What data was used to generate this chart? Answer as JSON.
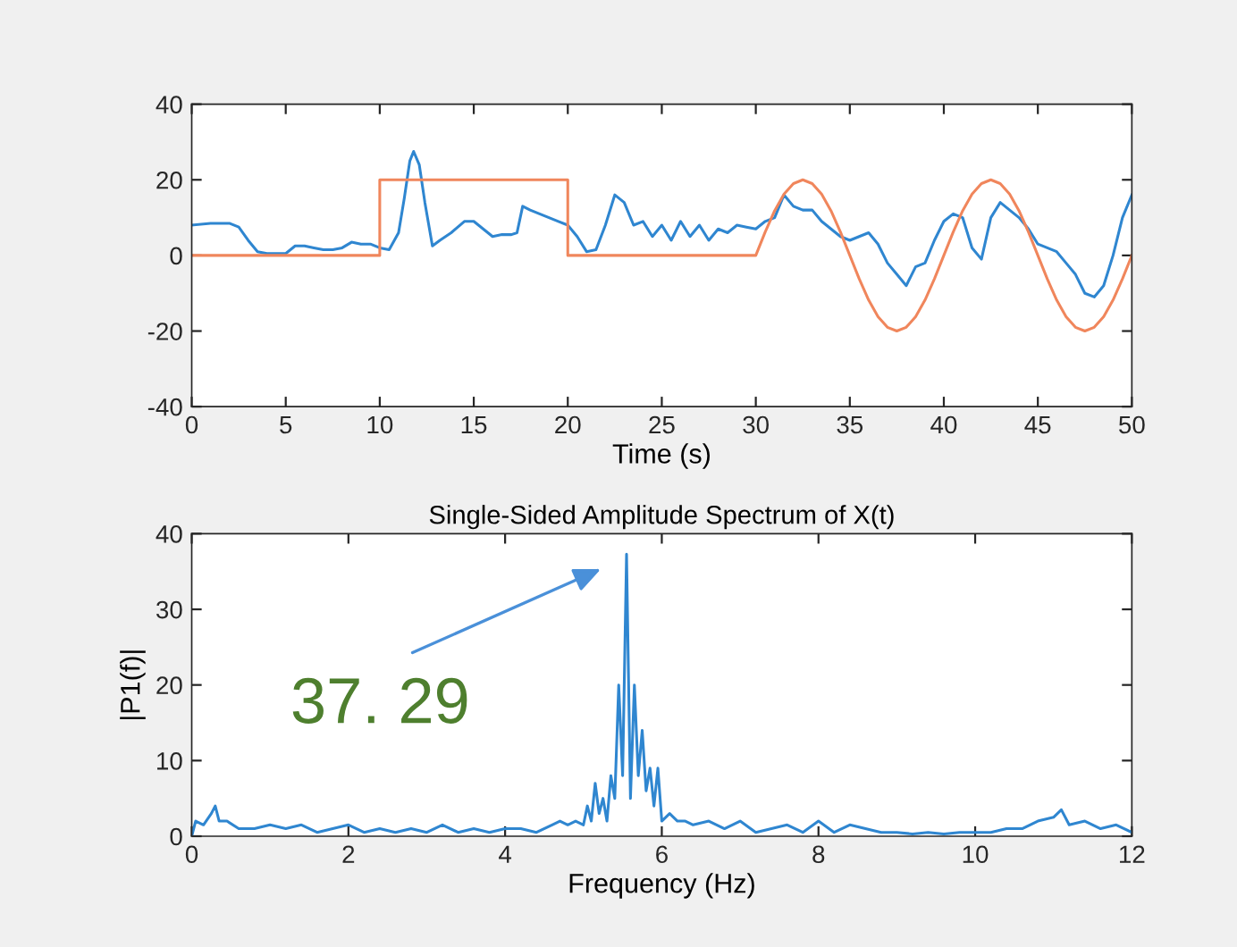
{
  "chart_data": [
    {
      "type": "line",
      "xlabel": "Time (s)",
      "xlim": [
        0,
        50
      ],
      "xticks": [
        0,
        5,
        10,
        15,
        20,
        25,
        30,
        35,
        40,
        45,
        50
      ],
      "ylim": [
        -40,
        40
      ],
      "yticks": [
        -40,
        -20,
        0,
        20,
        40
      ],
      "grid": false,
      "legend": false,
      "series": [
        {
          "color": "#2f86d0",
          "x": [
            0,
            1,
            2,
            2.5,
            3,
            3.5,
            4,
            5,
            5.5,
            6,
            6.5,
            7,
            7.5,
            8,
            8.5,
            9,
            9.5,
            10,
            10.5,
            11,
            11.3,
            11.6,
            11.8,
            12.1,
            12.4,
            12.8,
            13.2,
            13.8,
            14.5,
            15,
            15.5,
            16,
            16.5,
            17,
            17.3,
            17.6,
            18,
            18.5,
            19,
            19.5,
            20,
            20.5,
            21,
            21.5,
            22,
            22.5,
            23,
            23.5,
            24,
            24.5,
            25,
            25.5,
            26,
            26.5,
            27,
            27.5,
            28,
            28.5,
            29,
            29.5,
            30,
            30.5,
            31,
            31.5,
            32,
            32.5,
            33,
            33.5,
            34,
            34.5,
            35,
            35.5,
            36,
            36.5,
            37,
            37.5,
            38,
            38.5,
            39,
            39.5,
            40,
            40.5,
            41,
            41.5,
            42,
            42.5,
            43,
            43.5,
            44,
            44.5,
            45,
            45.5,
            46,
            46.5,
            47,
            47.5,
            48,
            48.5,
            49,
            49.5,
            50
          ],
          "values": [
            8,
            8.5,
            8.5,
            7.5,
            4,
            1,
            0.5,
            0.5,
            2.5,
            2.5,
            2,
            1.5,
            1.5,
            2,
            3.5,
            3,
            3,
            2,
            1.5,
            6,
            15,
            25,
            27.5,
            24,
            14,
            2.5,
            4,
            6,
            9,
            9,
            7,
            5,
            5.5,
            5.5,
            6,
            13,
            12,
            11,
            10,
            9,
            8,
            5,
            1,
            1.5,
            8,
            16,
            14,
            8,
            9,
            5,
            8,
            4,
            9,
            5,
            8,
            4,
            7,
            6,
            8,
            7.5,
            7,
            9,
            10,
            16,
            13,
            12,
            12,
            9,
            7,
            5,
            4,
            5,
            6,
            3,
            -2,
            -5,
            -8,
            -3,
            -2,
            4,
            9,
            11,
            10,
            2,
            -1,
            10,
            14,
            12,
            10,
            7,
            3,
            2,
            1,
            -2,
            -5,
            -10,
            -11,
            -8,
            0,
            10,
            16
          ]
        },
        {
          "color": "#f0865c",
          "x": [
            0,
            10,
            10,
            20,
            20,
            30,
            30.5,
            31,
            31.5,
            32,
            32.5,
            33,
            33.5,
            34,
            34.5,
            35,
            35.5,
            36,
            36.5,
            37,
            37.5,
            38,
            38.5,
            39,
            39.5,
            40,
            40.5,
            41,
            41.5,
            42,
            42.5,
            43,
            43.5,
            44,
            44.5,
            45,
            45.5,
            46,
            46.5,
            47,
            47.5,
            48,
            48.5,
            49,
            49.5,
            50
          ],
          "values": [
            0,
            0,
            20,
            20,
            0,
            0,
            6.2,
            11.8,
            16.2,
            19,
            20,
            19,
            16.2,
            11.8,
            6.2,
            0,
            -6.2,
            -11.8,
            -16.2,
            -19,
            -20,
            -19,
            -16.2,
            -11.8,
            -6.2,
            0,
            6.2,
            11.8,
            16.2,
            19,
            20,
            19,
            16.2,
            11.8,
            6.2,
            0,
            -6.2,
            -11.8,
            -16.2,
            -19,
            -20,
            -19,
            -16.2,
            -11.8,
            -6.2,
            0
          ]
        }
      ]
    },
    {
      "type": "line",
      "title": "Single-Sided Amplitude Spectrum of X(t)",
      "xlabel": "Frequency (Hz)",
      "ylabel": "|P1(f)|",
      "xlim": [
        0,
        12
      ],
      "xticks": [
        0,
        2,
        4,
        6,
        8,
        10,
        12
      ],
      "ylim": [
        0,
        40
      ],
      "yticks": [
        0,
        10,
        20,
        30,
        40
      ],
      "grid": false,
      "legend": false,
      "annotations": [
        "37. 29"
      ],
      "series": [
        {
          "color": "#2f86d0",
          "x": [
            0,
            0.05,
            0.15,
            0.25,
            0.3,
            0.35,
            0.45,
            0.6,
            0.8,
            1.0,
            1.2,
            1.4,
            1.6,
            1.8,
            2.0,
            2.2,
            2.4,
            2.6,
            2.8,
            3.0,
            3.2,
            3.4,
            3.6,
            3.8,
            4.0,
            4.2,
            4.4,
            4.6,
            4.7,
            4.8,
            4.9,
            5.0,
            5.05,
            5.1,
            5.15,
            5.2,
            5.25,
            5.3,
            5.35,
            5.4,
            5.45,
            5.5,
            5.55,
            5.6,
            5.65,
            5.7,
            5.75,
            5.8,
            5.85,
            5.9,
            5.95,
            6.0,
            6.1,
            6.2,
            6.3,
            6.4,
            6.6,
            6.8,
            7.0,
            7.2,
            7.4,
            7.6,
            7.8,
            8.0,
            8.2,
            8.4,
            8.6,
            8.8,
            9.0,
            9.2,
            9.4,
            9.6,
            9.8,
            10.0,
            10.2,
            10.4,
            10.6,
            10.8,
            11.0,
            11.1,
            11.2,
            11.4,
            11.6,
            11.8,
            12.0
          ],
          "values": [
            0,
            2,
            1.5,
            3,
            4,
            2,
            2,
            1,
            1,
            1.5,
            1,
            1.5,
            0.5,
            1,
            1.5,
            0.5,
            1,
            0.5,
            1,
            0.5,
            1.5,
            0.5,
            1,
            0.5,
            1,
            1,
            0.5,
            1.5,
            2,
            1.5,
            2,
            1.5,
            4,
            2,
            7,
            3,
            5,
            2,
            8,
            5,
            20,
            8,
            37.29,
            5,
            20,
            8,
            14,
            6,
            9,
            4,
            9,
            2,
            3,
            2,
            2,
            1.5,
            2,
            1,
            2,
            0.5,
            1,
            1.5,
            0.5,
            2,
            0.5,
            1.5,
            1,
            0.5,
            0.5,
            0.3,
            0.5,
            0.3,
            0.5,
            0.5,
            0.5,
            1,
            1,
            2,
            2.5,
            3.5,
            1.5,
            2,
            1,
            1.5,
            0.5
          ]
        }
      ]
    }
  ]
}
